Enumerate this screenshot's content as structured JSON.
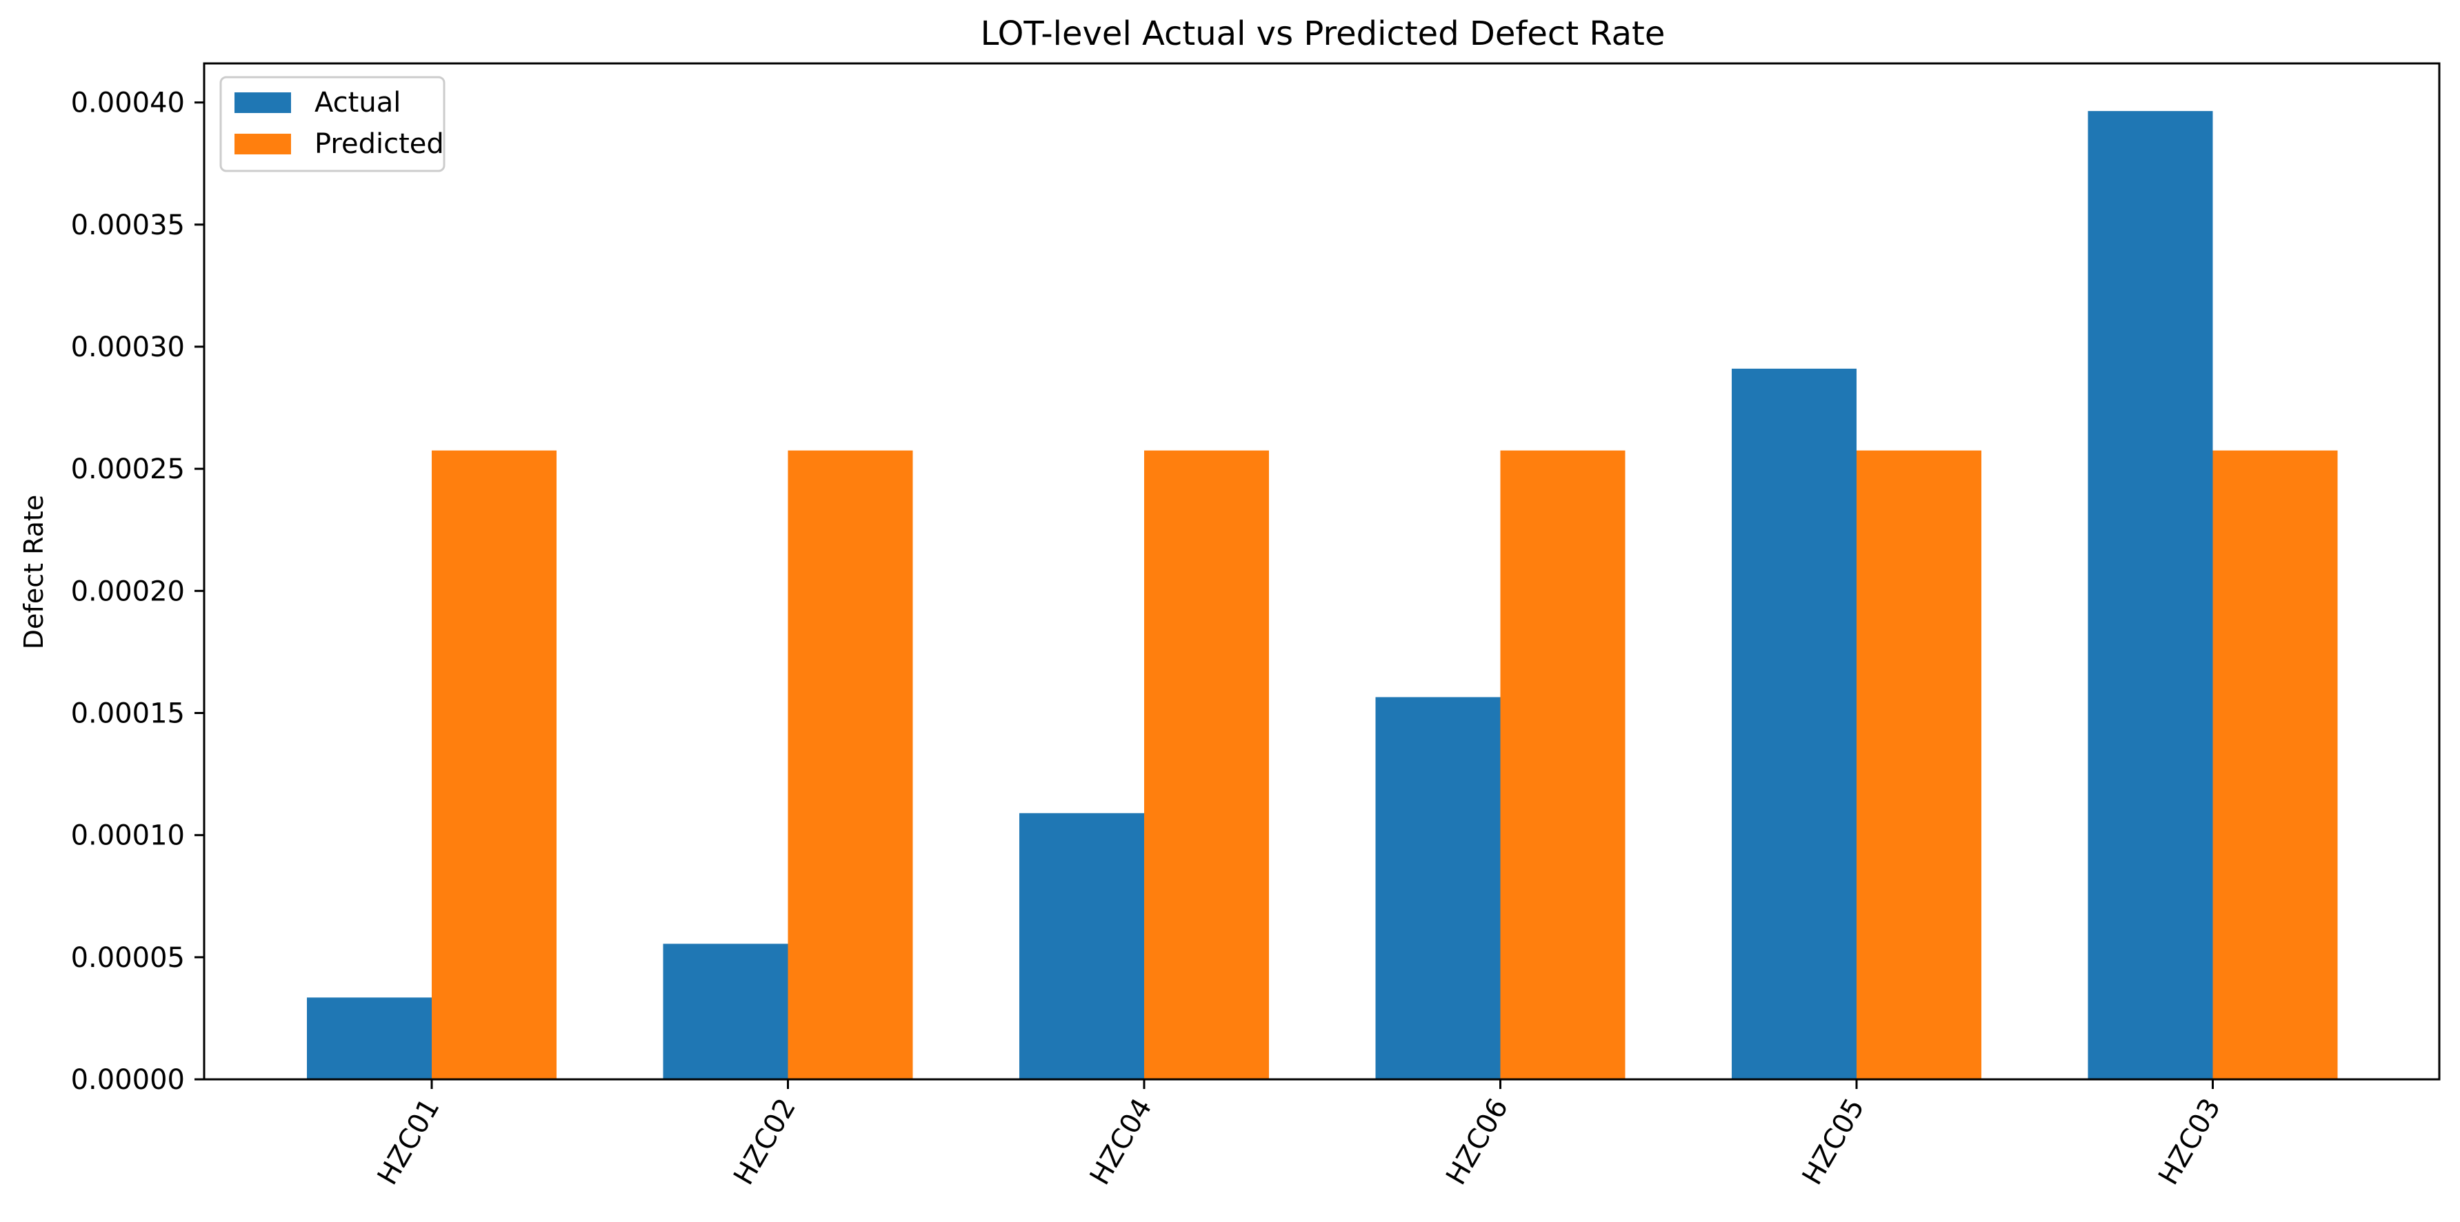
{
  "colors": {
    "actual": "#1f77b4",
    "predicted": "#ff7f0e"
  },
  "chart_data": {
    "type": "bar",
    "title": "LOT-level Actual vs Predicted Defect Rate",
    "xlabel": "",
    "ylabel": "Defect Rate",
    "categories": [
      "HZC01",
      "HZC02",
      "HZC04",
      "HZC06",
      "HZC05",
      "HZC03"
    ],
    "series": [
      {
        "name": "Actual",
        "values": [
          3.35e-05,
          5.55e-05,
          0.000109,
          0.0001565,
          0.000291,
          0.0003965
        ]
      },
      {
        "name": "Predicted",
        "values": [
          0.0002575,
          0.0002575,
          0.0002575,
          0.0002575,
          0.0002575,
          0.0002575
        ]
      }
    ],
    "ylim": [
      0,
      0.000416
    ],
    "yticks": [
      "0.00000",
      "0.00005",
      "0.00010",
      "0.00015",
      "0.00020",
      "0.00025",
      "0.00030",
      "0.00035",
      "0.00040"
    ],
    "grid": false,
    "legend_position": "top-left"
  }
}
